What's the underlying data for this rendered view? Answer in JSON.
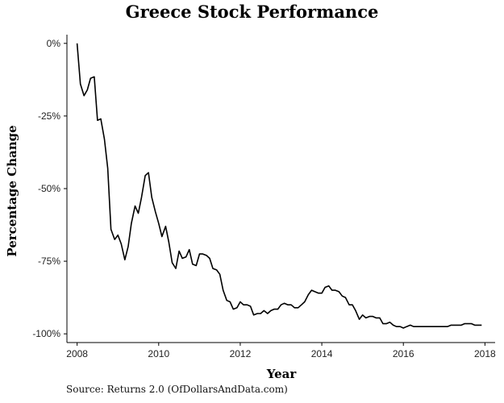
{
  "chart_data": {
    "type": "line",
    "title": "Greece Stock Performance",
    "xlabel": "Year",
    "ylabel": "Percentage Change",
    "caption": "Source: Returns 2.0 (OfDollarsAndData.com)",
    "xlim": [
      2007.75,
      2018.25
    ],
    "ylim": [
      -103,
      3
    ],
    "x_ticks": [
      2008,
      2010,
      2012,
      2014,
      2016,
      2018
    ],
    "x_tick_labels": [
      "2008",
      "2010",
      "2012",
      "2014",
      "2016",
      "2018"
    ],
    "y_ticks": [
      0,
      -25,
      -50,
      -75,
      -100
    ],
    "y_tick_labels": [
      "0%",
      "-25%",
      "-50%",
      "-75%",
      "-100%"
    ],
    "grid": false,
    "line_color": "#000000",
    "series": [
      {
        "x": [
          2008.0,
          2008.08,
          2008.17,
          2008.25,
          2008.33,
          2008.42,
          2008.5,
          2008.58,
          2008.67,
          2008.75,
          2008.83,
          2008.92,
          2009.0,
          2009.08,
          2009.17,
          2009.25,
          2009.33,
          2009.42,
          2009.5,
          2009.58,
          2009.67,
          2009.75,
          2009.83,
          2009.92,
          2010.0,
          2010.08,
          2010.17,
          2010.25,
          2010.33,
          2010.42,
          2010.5,
          2010.58,
          2010.67,
          2010.75,
          2010.83,
          2010.92,
          2011.0,
          2011.08,
          2011.17,
          2011.25,
          2011.33,
          2011.42,
          2011.5,
          2011.58,
          2011.67,
          2011.75,
          2011.83,
          2011.92,
          2012.0,
          2012.08,
          2012.17,
          2012.25,
          2012.33,
          2012.42,
          2012.5,
          2012.58,
          2012.67,
          2012.75,
          2012.83,
          2012.92,
          2013.0,
          2013.08,
          2013.17,
          2013.25,
          2013.33,
          2013.42,
          2013.5,
          2013.58,
          2013.67,
          2013.75,
          2013.83,
          2013.92,
          2014.0,
          2014.08,
          2014.17,
          2014.25,
          2014.33,
          2014.42,
          2014.5,
          2014.58,
          2014.67,
          2014.75,
          2014.83,
          2014.92,
          2015.0,
          2015.08,
          2015.17,
          2015.25,
          2015.33,
          2015.42,
          2015.5,
          2015.58,
          2015.67,
          2015.75,
          2015.83,
          2015.92,
          2016.0,
          2016.08,
          2016.17,
          2016.25,
          2016.33,
          2016.42,
          2016.5,
          2016.58,
          2016.67,
          2016.75,
          2016.83,
          2016.92,
          2017.0,
          2017.08,
          2017.17,
          2017.25,
          2017.33,
          2017.42,
          2017.5,
          2017.58,
          2017.67,
          2017.75,
          2017.83,
          2017.92
        ],
        "values": [
          0,
          -14,
          -18,
          -16,
          -12,
          -11.5,
          -26.5,
          -26,
          -33,
          -43,
          -64,
          -67.5,
          -66,
          -69,
          -74.5,
          -70,
          -62,
          -56,
          -58.5,
          -53,
          -45.5,
          -44.5,
          -53,
          -58,
          -62,
          -66.5,
          -63,
          -68.5,
          -75.5,
          -77.5,
          -71.5,
          -74,
          -73.5,
          -71,
          -76,
          -76.5,
          -72.5,
          -72.5,
          -73,
          -74,
          -77.5,
          -78,
          -79.5,
          -85,
          -88.5,
          -89,
          -91.5,
          -91,
          -89,
          -90,
          -90,
          -90.5,
          -93.5,
          -93,
          -93,
          -92,
          -93,
          -92,
          -91.5,
          -91.5,
          -90,
          -89.5,
          -90,
          -90,
          -91,
          -91,
          -90,
          -89,
          -86.5,
          -85,
          -85.5,
          -86,
          -86,
          -84,
          -83.5,
          -85,
          -85,
          -85.5,
          -87,
          -87.5,
          -90,
          -90,
          -92,
          -95,
          -93.5,
          -94.5,
          -94,
          -94,
          -94.5,
          -94.5,
          -96.5,
          -96.5,
          -96,
          -97,
          -97.5,
          -97.5,
          -98,
          -97.5,
          -97,
          -97.5,
          -97.5,
          -97.5,
          -97.5,
          -97.5,
          -97.5,
          -97.5,
          -97.5,
          -97.5,
          -97.5,
          -97.5,
          -97,
          -97,
          -97,
          -97,
          -96.5,
          -96.5,
          -96.5,
          -97,
          -97,
          -97
        ]
      }
    ]
  }
}
